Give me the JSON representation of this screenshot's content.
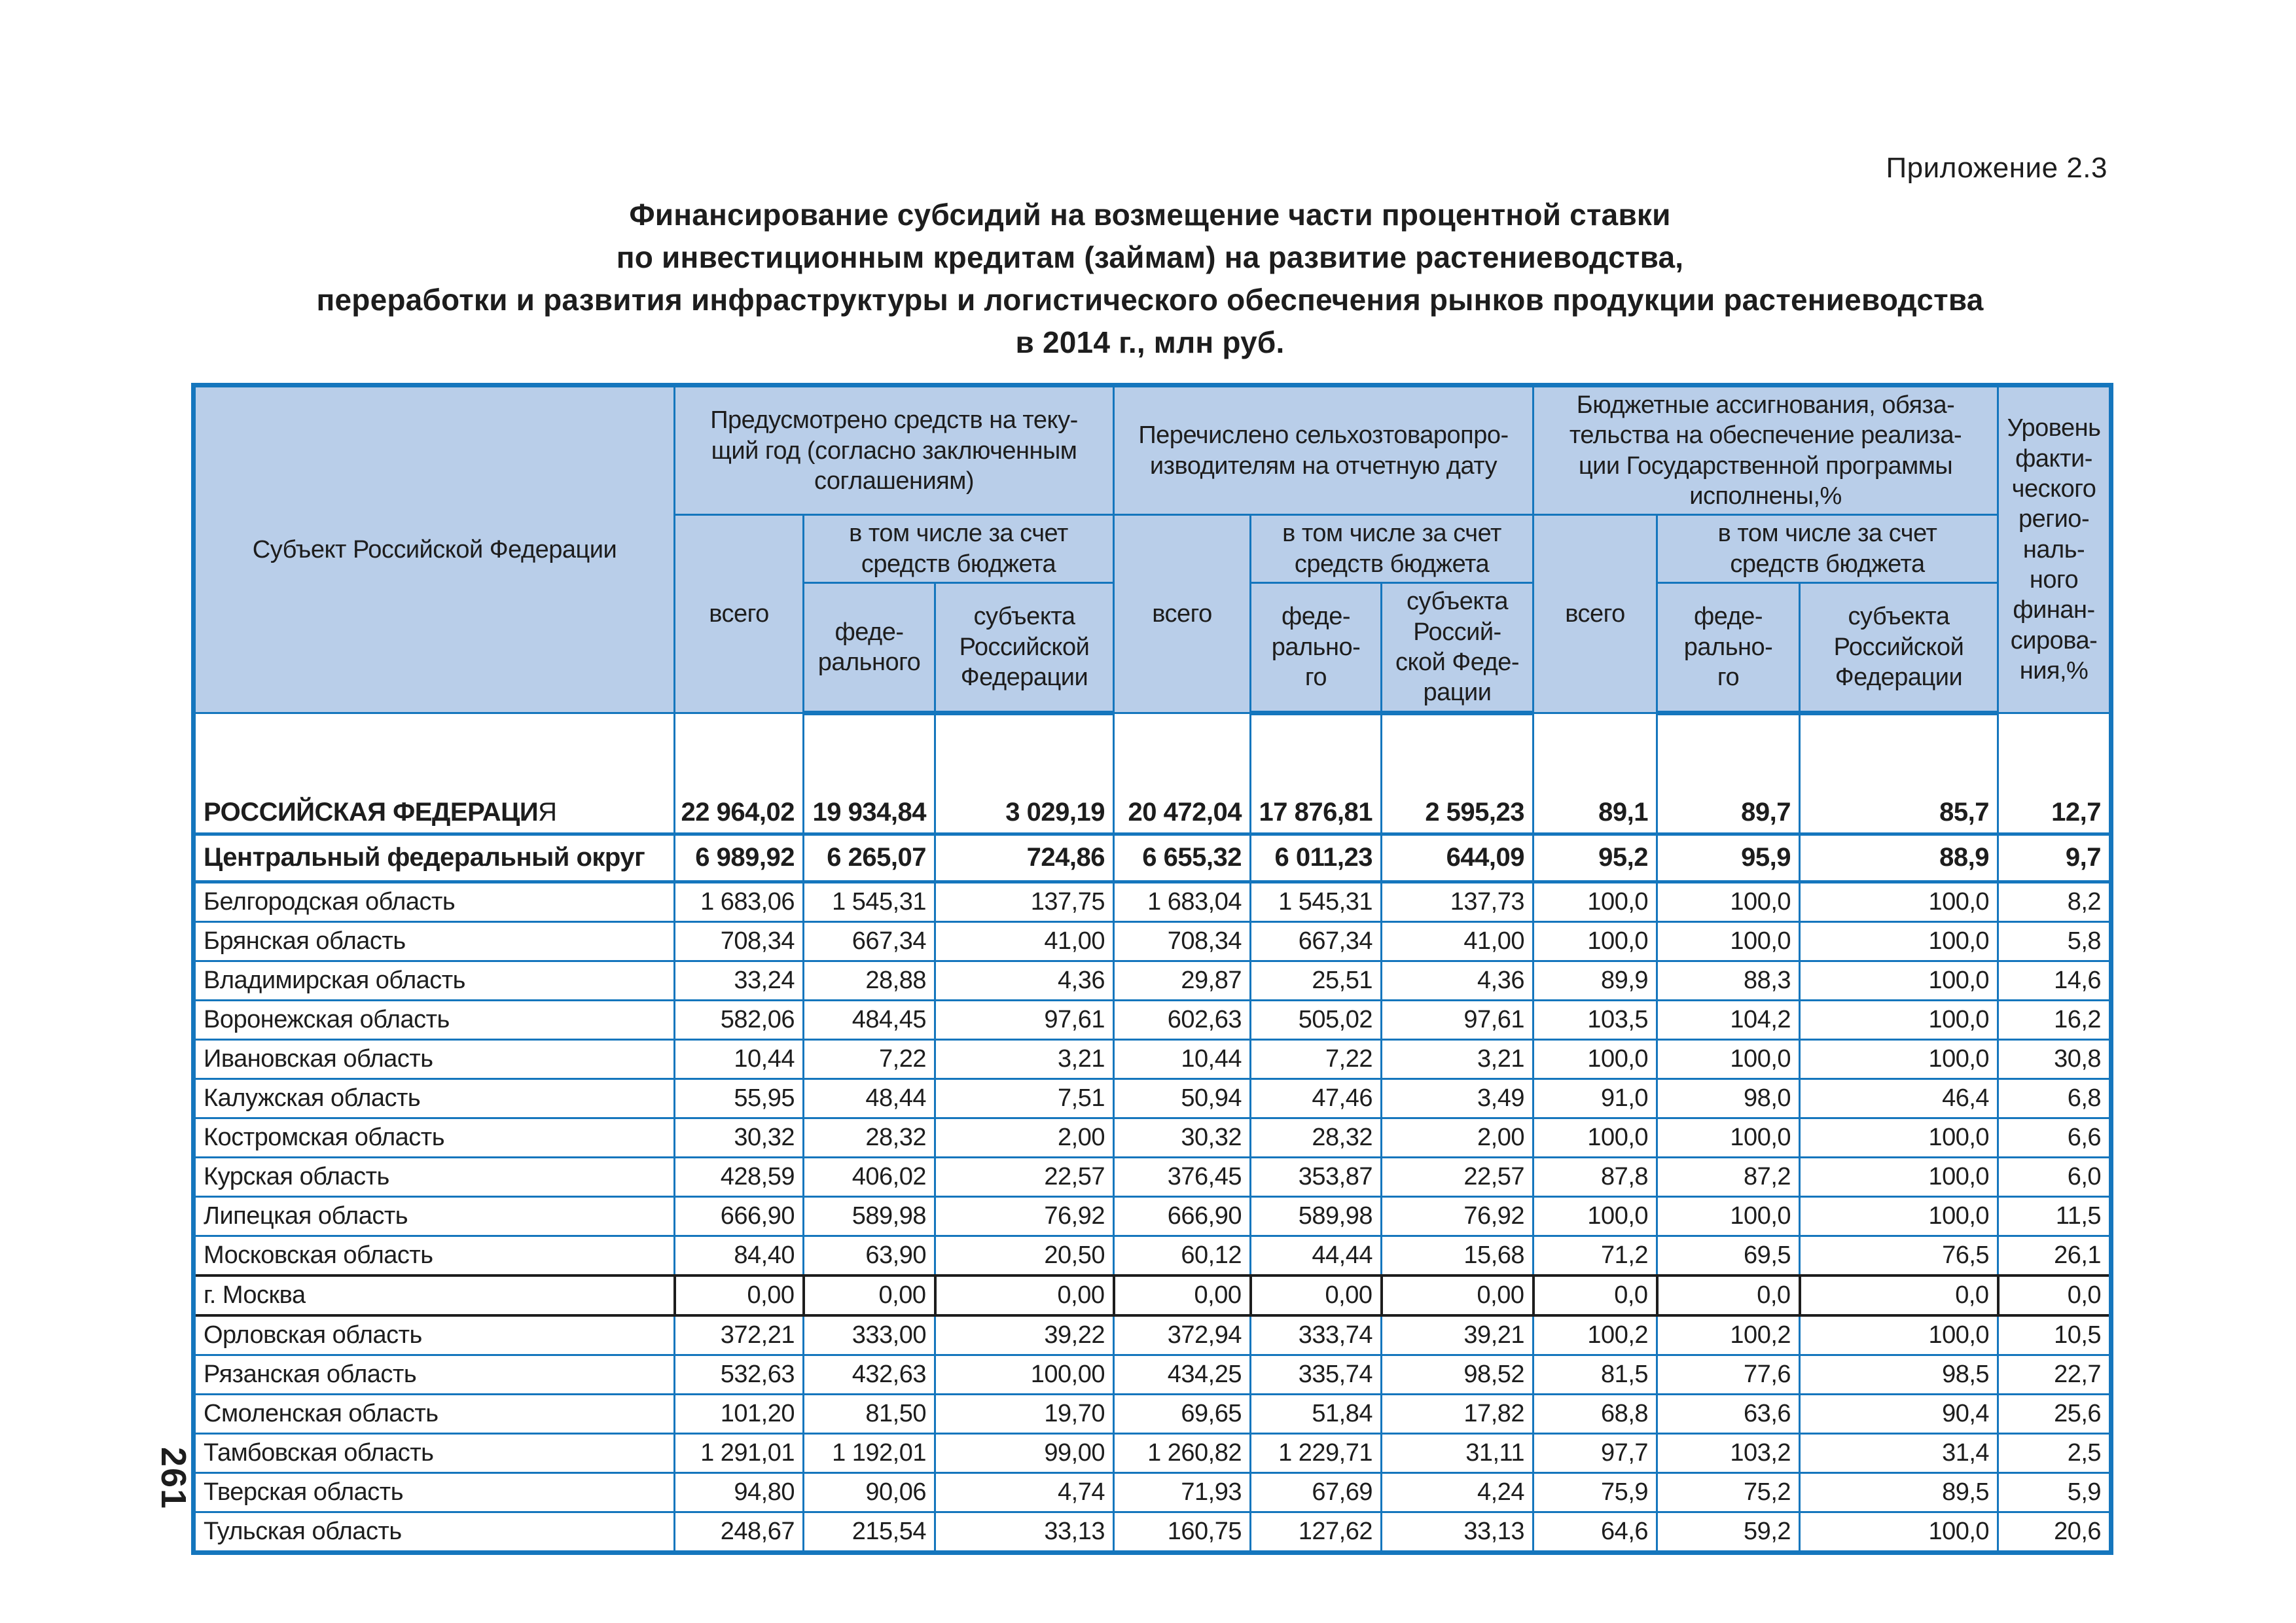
{
  "page": {
    "appendix": "Приложение 2.3",
    "page_number": "261"
  },
  "title": {
    "lines": [
      "Финансирование субсидий на возмещение части процентной ставки",
      "по инвестиционным кредитам (займам) на развитие растениеводства,",
      "переработки и развития инфраструктуры и логистического обеспечения рынков продукции растениеводства",
      "в 2014 г., млн руб."
    ]
  },
  "table": {
    "header": {
      "subject": "Субъект Российской Федерации",
      "group_provided": "Предусмотрено средств на теку-\nщий год (согласно заключенным\nсоглашениям)",
      "group_transferred": "Перечислено сельхозтоваропро-\nизводителям на отчетную дату",
      "group_budget": "Бюджетные ассигнования, обяза-\nтельства на обеспечение реализа-\nции Государственной программы\nисполнены,%",
      "level": "Уровень\nфакти-\nческого\nрегио-\nналь-\nного\nфинан-\nсирова-\nния,%",
      "total1": "всего",
      "total2": "всего",
      "total3": "всего",
      "incl1": "в том числе за счет\nсредств бюджета",
      "incl2": "в том числе за счет\nсредств бюджета",
      "incl3": "в том числе за счет\nсредств бюджета",
      "fed1": "феде-\nрального",
      "sub1": "субъекта\nРоссийской\nФедерации",
      "fed2": "феде-\nрально-\nго",
      "sub2": "субъекта\nРоссий-\nской Феде-\nрации",
      "fed3": "феде-\nрально-\nго",
      "sub3": "субъекта\nРоссийской\nФедерации"
    },
    "rows": [
      {
        "name": "РОССИЙСКАЯ ФЕДЕРАЦИ",
        "name_tail": "Я",
        "style": "fed",
        "values": [
          "22 964,02",
          "19 934,84",
          "3 029,19",
          "20 472,04",
          "17 876,81",
          "2 595,23",
          "89,1",
          "89,7",
          "85,7",
          "12,7"
        ]
      },
      {
        "name": "Центральный федеральный округ",
        "style": "cfo",
        "values": [
          "6 989,92",
          "6 265,07",
          "724,86",
          "6 655,32",
          "6 011,23",
          "644,09",
          "95,2",
          "95,9",
          "88,9",
          "9,7"
        ]
      },
      {
        "name": "Белгородская область",
        "values": [
          "1 683,06",
          "1 545,31",
          "137,75",
          "1 683,04",
          "1 545,31",
          "137,73",
          "100,0",
          "100,0",
          "100,0",
          "8,2"
        ]
      },
      {
        "name": "Брянская область",
        "values": [
          "708,34",
          "667,34",
          "41,00",
          "708,34",
          "667,34",
          "41,00",
          "100,0",
          "100,0",
          "100,0",
          "5,8"
        ]
      },
      {
        "name": "Владимирская область",
        "values": [
          "33,24",
          "28,88",
          "4,36",
          "29,87",
          "25,51",
          "4,36",
          "89,9",
          "88,3",
          "100,0",
          "14,6"
        ]
      },
      {
        "name": "Воронежская область",
        "values": [
          "582,06",
          "484,45",
          "97,61",
          "602,63",
          "505,02",
          "97,61",
          "103,5",
          "104,2",
          "100,0",
          "16,2"
        ]
      },
      {
        "name": "Ивановская область",
        "values": [
          "10,44",
          "7,22",
          "3,21",
          "10,44",
          "7,22",
          "3,21",
          "100,0",
          "100,0",
          "100,0",
          "30,8"
        ]
      },
      {
        "name": "Калужская область",
        "values": [
          "55,95",
          "48,44",
          "7,51",
          "50,94",
          "47,46",
          "3,49",
          "91,0",
          "98,0",
          "46,4",
          "6,8"
        ]
      },
      {
        "name": "Костромская область",
        "values": [
          "30,32",
          "28,32",
          "2,00",
          "30,32",
          "28,32",
          "2,00",
          "100,0",
          "100,0",
          "100,0",
          "6,6"
        ]
      },
      {
        "name": "Курская область",
        "values": [
          "428,59",
          "406,02",
          "22,57",
          "376,45",
          "353,87",
          "22,57",
          "87,8",
          "87,2",
          "100,0",
          "6,0"
        ]
      },
      {
        "name": "Липецкая область",
        "values": [
          "666,90",
          "589,98",
          "76,92",
          "666,90",
          "589,98",
          "76,92",
          "100,0",
          "100,0",
          "100,0",
          "11,5"
        ]
      },
      {
        "name": "Московская область",
        "values": [
          "84,40",
          "63,90",
          "20,50",
          "60,12",
          "44,44",
          "15,68",
          "71,2",
          "69,5",
          "76,5",
          "26,1"
        ]
      },
      {
        "name": "г. Москва",
        "style": "moscow",
        "values": [
          "0,00",
          "0,00",
          "0,00",
          "0,00",
          "0,00",
          "0,00",
          "0,0",
          "0,0",
          "0,0",
          "0,0"
        ]
      },
      {
        "name": "Орловская область",
        "values": [
          "372,21",
          "333,00",
          "39,22",
          "372,94",
          "333,74",
          "39,21",
          "100,2",
          "100,2",
          "100,0",
          "10,5"
        ]
      },
      {
        "name": "Рязанская область",
        "values": [
          "532,63",
          "432,63",
          "100,00",
          "434,25",
          "335,74",
          "98,52",
          "81,5",
          "77,6",
          "98,5",
          "22,7"
        ]
      },
      {
        "name": "Смоленская область",
        "values": [
          "101,20",
          "81,50",
          "19,70",
          "69,65",
          "51,84",
          "17,82",
          "68,8",
          "63,6",
          "90,4",
          "25,6"
        ]
      },
      {
        "name": "Тамбовская область",
        "values": [
          "1 291,01",
          "1 192,01",
          "99,00",
          "1 260,82",
          "1 229,71",
          "31,11",
          "97,7",
          "103,2",
          "31,4",
          "2,5"
        ]
      },
      {
        "name": "Тверская область",
        "values": [
          "94,80",
          "90,06",
          "4,74",
          "71,93",
          "67,69",
          "4,24",
          "75,9",
          "75,2",
          "89,5",
          "5,9"
        ]
      },
      {
        "name": "Тульская область",
        "values": [
          "248,67",
          "215,54",
          "33,13",
          "160,75",
          "127,62",
          "33,13",
          "64,6",
          "59,2",
          "100,0",
          "20,6"
        ]
      }
    ]
  }
}
